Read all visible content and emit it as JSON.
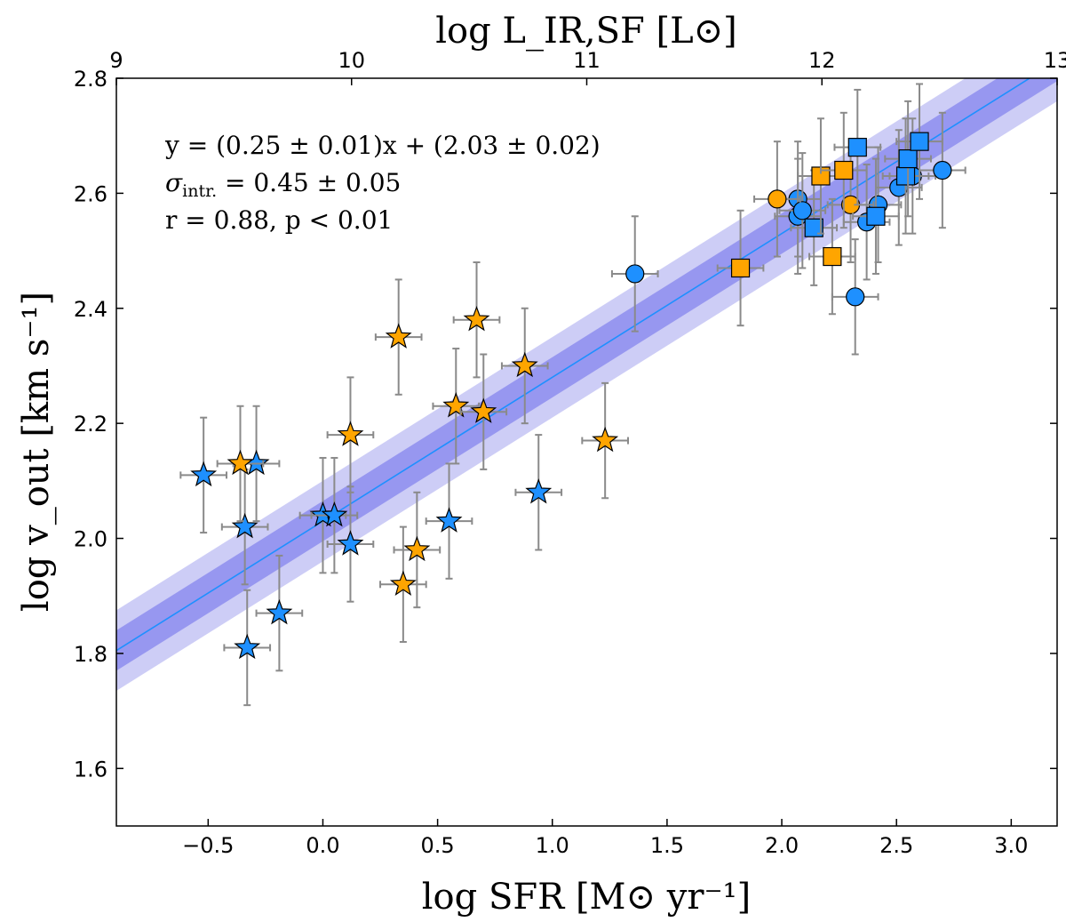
{
  "chart_data": {
    "type": "scatter",
    "title": "",
    "xlabel": "log SFR [M⊙ yr⁻¹]",
    "ylabel": "log v_out [km s⁻¹]",
    "top_xlabel": "log L_IR,SF [L⊙]",
    "xlim": [
      -0.9,
      3.2
    ],
    "ylim": [
      1.5,
      2.8
    ],
    "top_xlim": [
      9,
      13
    ],
    "x_ticks": [
      -0.5,
      0.0,
      0.5,
      1.0,
      1.5,
      2.0,
      2.5,
      3.0
    ],
    "x_tick_labels": [
      "−0.5",
      "0.0",
      "0.5",
      "1.0",
      "1.5",
      "2.0",
      "2.5",
      "3.0"
    ],
    "y_ticks": [
      1.6,
      1.8,
      2.0,
      2.2,
      2.4,
      2.6,
      2.8
    ],
    "y_tick_labels": [
      "1.6",
      "1.8",
      "2.0",
      "2.2",
      "2.4",
      "2.6",
      "2.8"
    ],
    "top_ticks": [
      9,
      10,
      11,
      12,
      13
    ],
    "top_tick_labels": [
      "9",
      "10",
      "11",
      "12",
      "13"
    ],
    "grid": false,
    "colors": {
      "blue": "#1e90ff",
      "orange": "#ffa500",
      "fit_line": "#1e90ff",
      "band_inner": "#8080ee",
      "band_outer": "#c4c4f4",
      "error_bar": "#8a8a8a"
    },
    "fit": {
      "slope": 0.25,
      "intercept": 2.03,
      "band_inner_halfwidth": 0.035,
      "band_outer_halfwidth": 0.07
    },
    "annotations": {
      "line1": "y = (0.25 ± 0.01)x + (2.03 ± 0.02)",
      "line2_sigma": "σ",
      "line2_sub": "intr.",
      "line2_rest": " = 0.45 ± 0.05",
      "line3": "r = 0.88, p < 0.01"
    },
    "series": [
      {
        "name": "blue stars",
        "marker": "star",
        "color": "blue",
        "points": [
          {
            "x": -0.52,
            "y": 2.11,
            "xerr": 0.1,
            "yerr": 0.1
          },
          {
            "x": -0.29,
            "y": 2.13,
            "xerr": 0.1,
            "yerr": 0.1
          },
          {
            "x": -0.34,
            "y": 2.02,
            "xerr": 0.1,
            "yerr": 0.1
          },
          {
            "x": 0.0,
            "y": 2.04,
            "xerr": 0.1,
            "yerr": 0.1
          },
          {
            "x": 0.05,
            "y": 2.04,
            "xerr": 0.1,
            "yerr": 0.1
          },
          {
            "x": 0.12,
            "y": 1.99,
            "xerr": 0.1,
            "yerr": 0.1
          },
          {
            "x": -0.19,
            "y": 1.87,
            "xerr": 0.1,
            "yerr": 0.1
          },
          {
            "x": -0.33,
            "y": 1.81,
            "xerr": 0.1,
            "yerr": 0.1
          },
          {
            "x": 0.55,
            "y": 2.03,
            "xerr": 0.1,
            "yerr": 0.1
          },
          {
            "x": 0.94,
            "y": 2.08,
            "xerr": 0.1,
            "yerr": 0.1
          }
        ]
      },
      {
        "name": "orange stars",
        "marker": "star",
        "color": "orange",
        "points": [
          {
            "x": -0.36,
            "y": 2.13,
            "xerr": 0.1,
            "yerr": 0.1
          },
          {
            "x": 0.12,
            "y": 2.18,
            "xerr": 0.1,
            "yerr": 0.1
          },
          {
            "x": 0.33,
            "y": 2.35,
            "xerr": 0.1,
            "yerr": 0.1
          },
          {
            "x": 0.58,
            "y": 2.23,
            "xerr": 0.1,
            "yerr": 0.1
          },
          {
            "x": 0.67,
            "y": 2.38,
            "xerr": 0.1,
            "yerr": 0.1
          },
          {
            "x": 0.7,
            "y": 2.22,
            "xerr": 0.1,
            "yerr": 0.1
          },
          {
            "x": 0.88,
            "y": 2.3,
            "xerr": 0.1,
            "yerr": 0.1
          },
          {
            "x": 1.23,
            "y": 2.17,
            "xerr": 0.1,
            "yerr": 0.1
          },
          {
            "x": 0.41,
            "y": 1.98,
            "xerr": 0.1,
            "yerr": 0.1
          },
          {
            "x": 0.35,
            "y": 1.92,
            "xerr": 0.1,
            "yerr": 0.1
          }
        ]
      },
      {
        "name": "blue circles",
        "marker": "circle",
        "color": "blue",
        "points": [
          {
            "x": 1.36,
            "y": 2.46,
            "xerr": 0.1,
            "yerr": 0.1
          },
          {
            "x": 2.07,
            "y": 2.59,
            "xerr": 0.1,
            "yerr": 0.1
          },
          {
            "x": 2.07,
            "y": 2.56,
            "xerr": 0.1,
            "yerr": 0.1
          },
          {
            "x": 2.09,
            "y": 2.57,
            "xerr": 0.1,
            "yerr": 0.1
          },
          {
            "x": 2.32,
            "y": 2.42,
            "xerr": 0.1,
            "yerr": 0.1
          },
          {
            "x": 2.37,
            "y": 2.55,
            "xerr": 0.1,
            "yerr": 0.1
          },
          {
            "x": 2.42,
            "y": 2.58,
            "xerr": 0.1,
            "yerr": 0.1
          },
          {
            "x": 2.51,
            "y": 2.61,
            "xerr": 0.1,
            "yerr": 0.1
          },
          {
            "x": 2.57,
            "y": 2.63,
            "xerr": 0.1,
            "yerr": 0.1
          },
          {
            "x": 2.7,
            "y": 2.64,
            "xerr": 0.1,
            "yerr": 0.1
          }
        ]
      },
      {
        "name": "orange circles",
        "marker": "circle",
        "color": "orange",
        "points": [
          {
            "x": 1.98,
            "y": 2.59,
            "xerr": 0.1,
            "yerr": 0.1
          },
          {
            "x": 2.3,
            "y": 2.58,
            "xerr": 0.1,
            "yerr": 0.1
          }
        ]
      },
      {
        "name": "blue squares",
        "marker": "square",
        "color": "blue",
        "points": [
          {
            "x": 2.14,
            "y": 2.54,
            "xerr": 0.1,
            "yerr": 0.1
          },
          {
            "x": 2.33,
            "y": 2.68,
            "xerr": 0.1,
            "yerr": 0.1
          },
          {
            "x": 2.41,
            "y": 2.56,
            "xerr": 0.1,
            "yerr": 0.1
          },
          {
            "x": 2.54,
            "y": 2.63,
            "xerr": 0.1,
            "yerr": 0.1
          },
          {
            "x": 2.55,
            "y": 2.66,
            "xerr": 0.1,
            "yerr": 0.1
          },
          {
            "x": 2.6,
            "y": 2.69,
            "xerr": 0.1,
            "yerr": 0.1
          }
        ]
      },
      {
        "name": "orange squares",
        "marker": "square",
        "color": "orange",
        "points": [
          {
            "x": 1.82,
            "y": 2.47,
            "xerr": 0.1,
            "yerr": 0.1
          },
          {
            "x": 2.17,
            "y": 2.63,
            "xerr": 0.1,
            "yerr": 0.1
          },
          {
            "x": 2.22,
            "y": 2.49,
            "xerr": 0.1,
            "yerr": 0.1
          },
          {
            "x": 2.27,
            "y": 2.64,
            "xerr": 0.1,
            "yerr": 0.1
          }
        ]
      }
    ]
  }
}
